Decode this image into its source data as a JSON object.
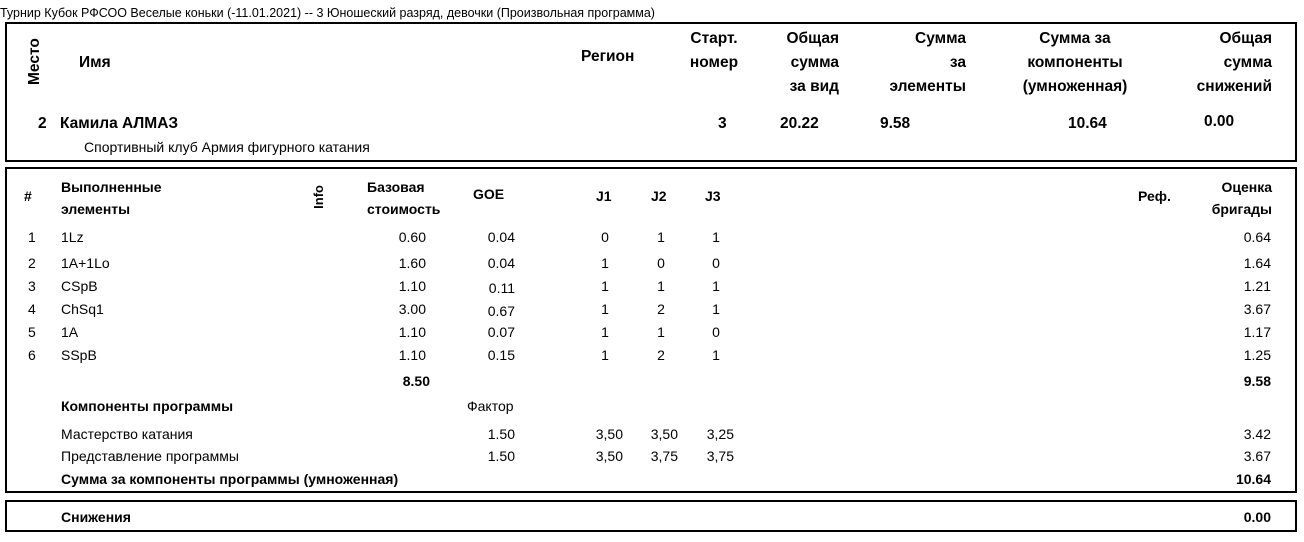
{
  "event_title": "Турнир Кубок РФСОО Веселые коньки (-11.01.2021)  --  3 Юношеский разряд, девочки  (Произвольная программа)",
  "header": {
    "place": "Место",
    "name": "Имя",
    "region": "Регион",
    "start_number": [
      "Старт.",
      "номер"
    ],
    "total_score": [
      "Общая",
      "сумма",
      "за вид"
    ],
    "elements_score": [
      "Сумма",
      "за",
      "элементы"
    ],
    "components_score": [
      "Сумма за",
      "компоненты",
      "(умноженная)"
    ],
    "deductions_total": [
      "Общая",
      "сумма",
      "снижений"
    ]
  },
  "skater": {
    "place": "2",
    "name": "Камила АЛМАЗ",
    "club": "Спортивный клуб Армия фигурного катания",
    "start_number": "3",
    "total_score": "20.22",
    "elements_score": "9.58",
    "components_score": "10.64",
    "deductions": "0.00"
  },
  "elements_header": {
    "num": "#",
    "executed": [
      "Выполненные",
      "элементы"
    ],
    "info": "Info",
    "base_value": [
      "Базовая",
      "стоимость"
    ],
    "goe": "GOE",
    "j1": "J1",
    "j2": "J2",
    "j3": "J3",
    "ref": "Реф.",
    "panel_score": [
      "Оценка",
      "бригады"
    ]
  },
  "elements": [
    {
      "num": "1",
      "name": "1Lz",
      "base": "0.60",
      "goe": "0.04",
      "j1": "0",
      "j2": "1",
      "j3": "1",
      "score": "0.64"
    },
    {
      "num": "2",
      "name": "1A+1Lo",
      "base": "1.60",
      "goe": "0.04",
      "j1": "1",
      "j2": "0",
      "j3": "0",
      "score": "1.64"
    },
    {
      "num": "3",
      "name": "CSpB",
      "base": "1.10",
      "goe": "0.11",
      "j1": "1",
      "j2": "1",
      "j3": "1",
      "score": "1.21"
    },
    {
      "num": "4",
      "name": "ChSq1",
      "base": "3.00",
      "goe": "0.67",
      "j1": "1",
      "j2": "2",
      "j3": "1",
      "score": "3.67"
    },
    {
      "num": "5",
      "name": "1A",
      "base": "1.10",
      "goe": "0.07",
      "j1": "1",
      "j2": "1",
      "j3": "0",
      "score": "1.17"
    },
    {
      "num": "6",
      "name": "SSpB",
      "base": "1.10",
      "goe": "0.15",
      "j1": "1",
      "j2": "2",
      "j3": "1",
      "score": "1.25"
    }
  ],
  "elements_totals": {
    "base": "8.50",
    "score": "9.58"
  },
  "components": {
    "title": "Компоненты программы",
    "factor_label": "Фактор",
    "rows": [
      {
        "name": "Мастерство катания",
        "factor": "1.50",
        "j1": "3,50",
        "j2": "3,50",
        "j3": "3,25",
        "score": "3.42"
      },
      {
        "name": "Представление программы",
        "factor": "1.50",
        "j1": "3,50",
        "j2": "3,75",
        "j3": "3,75",
        "score": "3.67"
      }
    ],
    "total_label": "Сумма за компоненты программы (умноженная)",
    "total_score": "10.64"
  },
  "deductions": {
    "label": "Снижения",
    "value": "0.00"
  }
}
